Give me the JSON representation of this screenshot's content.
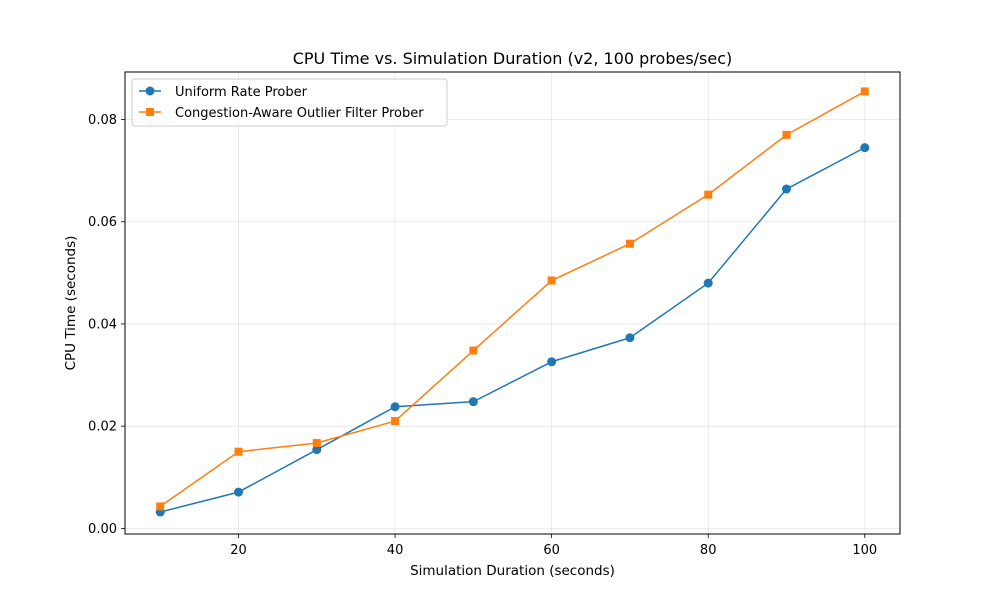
{
  "chart_data": {
    "type": "line",
    "title": "CPU Time vs. Simulation Duration (v2, 100 probes/sec)",
    "xlabel": "Simulation Duration (seconds)",
    "ylabel": "CPU Time (seconds)",
    "xlim": [
      5.5,
      104.5
    ],
    "ylim": [
      -0.0011,
      0.0893
    ],
    "x": [
      10,
      20,
      30,
      40,
      50,
      60,
      70,
      80,
      90,
      100
    ],
    "xticks": [
      20,
      40,
      60,
      80,
      100
    ],
    "xtick_labels": [
      "20",
      "40",
      "60",
      "80",
      "100"
    ],
    "yticks": [
      0.0,
      0.02,
      0.04,
      0.06,
      0.08
    ],
    "ytick_labels": [
      "0.00",
      "0.02",
      "0.04",
      "0.06",
      "0.08"
    ],
    "grid": true,
    "legend_position": "top-left",
    "series": [
      {
        "name": "Uniform Rate Prober",
        "color": "#1f77b4",
        "marker": "circle",
        "values": [
          0.0032,
          0.0071,
          0.0154,
          0.0238,
          0.0248,
          0.0326,
          0.0373,
          0.048,
          0.0664,
          0.0745
        ]
      },
      {
        "name": "Congestion-Aware Outlier Filter Prober",
        "color": "#ff7f0e",
        "marker": "square",
        "values": [
          0.0043,
          0.015,
          0.0167,
          0.021,
          0.0348,
          0.0485,
          0.0557,
          0.0653,
          0.077,
          0.0855
        ]
      }
    ]
  }
}
